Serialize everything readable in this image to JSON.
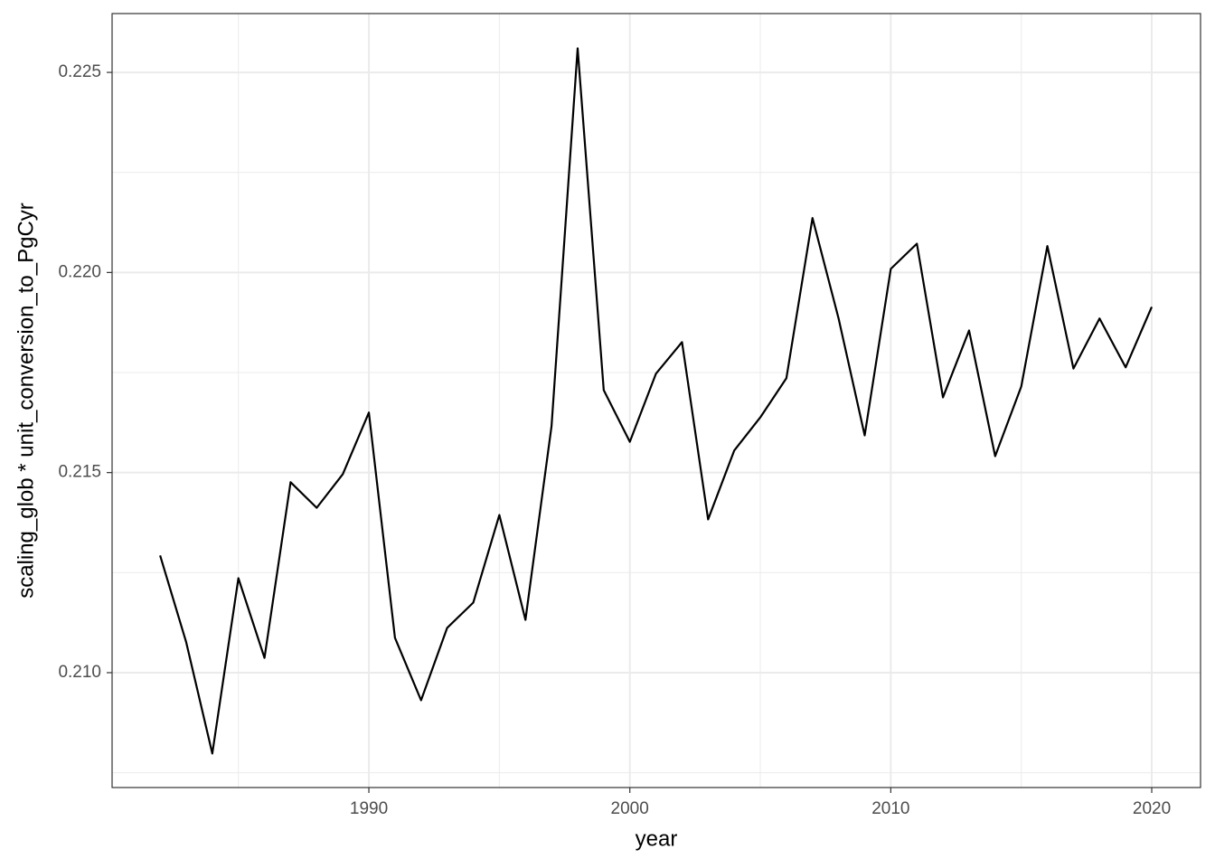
{
  "chart_data": {
    "type": "line",
    "x_label": "year",
    "y_label": "scaling_glob * unit_conversion_to_PgCyr",
    "x": [
      1982,
      1983,
      1984,
      1985,
      1986,
      1987,
      1988,
      1989,
      1990,
      1991,
      1992,
      1993,
      1994,
      1995,
      1996,
      1997,
      1998,
      1999,
      2000,
      2001,
      2002,
      2003,
      2004,
      2005,
      2006,
      2007,
      2008,
      2009,
      2010,
      2011,
      2012,
      2013,
      2014,
      2015,
      2016,
      2017,
      2018,
      2019,
      2020
    ],
    "values": [
      0.21293,
      0.21076,
      0.20798,
      0.21236,
      0.21037,
      0.21476,
      0.21412,
      0.21496,
      0.2165,
      0.21087,
      0.20931,
      0.21112,
      0.21175,
      0.21394,
      0.21132,
      0.21616,
      0.2256,
      0.21706,
      0.21577,
      0.21747,
      0.21826,
      0.21383,
      0.21555,
      0.21638,
      0.21736,
      0.22136,
      0.21885,
      0.21593,
      0.22009,
      0.22072,
      0.21688,
      0.21855,
      0.21541,
      0.21715,
      0.22066,
      0.2176,
      0.21885,
      0.21763,
      0.21914
    ],
    "color": "#000000",
    "xlim": [
      1980.16,
      2021.87
    ],
    "ylim": [
      0.20713,
      0.22647
    ],
    "xticks": [
      1990,
      2000,
      2010,
      2020
    ],
    "yticks": [
      {
        "value": 0.21,
        "label": "0.210"
      },
      {
        "value": 0.215,
        "label": "0.215"
      },
      {
        "value": 0.22,
        "label": "0.220"
      },
      {
        "value": 0.225,
        "label": "0.225"
      }
    ],
    "x_minor_ticks": [
      1985,
      1995,
      2005,
      2015
    ],
    "y_minor_ticks": [
      0.2075,
      0.2125,
      0.2175,
      0.2225
    ],
    "grid": true
  }
}
